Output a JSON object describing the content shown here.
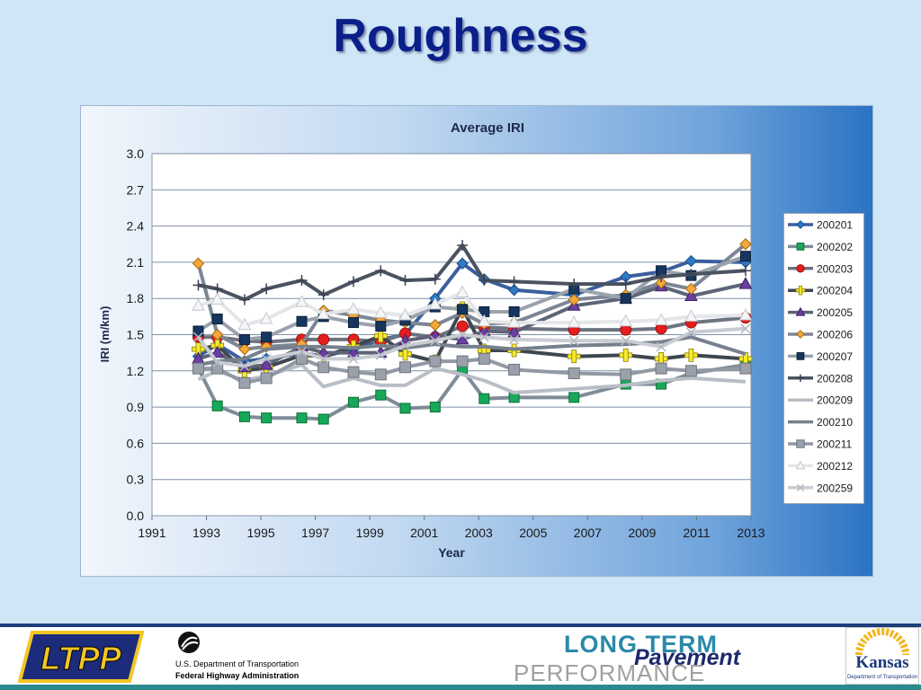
{
  "slide_title": "Roughness",
  "colors": {
    "title": "#0b1f8a",
    "plot_bg": "#ffffff",
    "grid": "#7f8fa6"
  },
  "chart_data": {
    "type": "line",
    "title": "Average IRI",
    "xlabel": "Year",
    "ylabel": "IRI (m/km)",
    "xlim": [
      1991,
      2013
    ],
    "ylim": [
      0,
      3.0
    ],
    "xticks": [
      "1991",
      "1993",
      "1995",
      "1997",
      "1999",
      "2001",
      "2003",
      "2005",
      "2007",
      "2009",
      "2011",
      "2013"
    ],
    "yticks": [
      "0.0",
      "0.3",
      "0.6",
      "0.9",
      "1.2",
      "1.5",
      "1.8",
      "2.1",
      "2.4",
      "2.7",
      "3.0"
    ],
    "grid": true,
    "legend_position": "right",
    "series": [
      {
        "name": "200201",
        "color": "#3a5f9e",
        "marker": "diamond",
        "x": [
          1992.7,
          1993.4,
          1994.4,
          1995.2,
          1996.5,
          1997.3,
          1998.4,
          1999.4,
          2000.3,
          2001.4,
          2002.4,
          2003.2,
          2004.3,
          2006.5,
          2008.4,
          2009.7,
          2010.8,
          2012.8
        ],
        "y": [
          1.32,
          1.42,
          1.28,
          1.3,
          1.35,
          1.32,
          1.38,
          1.46,
          1.5,
          1.8,
          2.09,
          1.96,
          1.87,
          1.83,
          1.98,
          2.02,
          2.11,
          2.1
        ]
      },
      {
        "name": "200202",
        "color": "#7f8c98",
        "marker": "square-green",
        "x": [
          1992.7,
          1993.4,
          1994.4,
          1995.2,
          1996.5,
          1997.3,
          1998.4,
          1999.4,
          2000.3,
          2001.4,
          2002.4,
          2003.2,
          2004.3,
          2006.5,
          2008.4,
          2009.7,
          2010.8,
          2012.8
        ],
        "y": [
          1.22,
          0.91,
          0.82,
          0.81,
          0.81,
          0.8,
          0.94,
          1.0,
          0.89,
          0.9,
          1.21,
          0.97,
          0.98,
          0.98,
          1.09,
          1.09,
          1.18,
          1.25
        ]
      },
      {
        "name": "200203",
        "color": "#6b7480",
        "marker": "circle-red",
        "x": [
          1992.7,
          1993.4,
          1994.4,
          1995.2,
          1996.5,
          1997.3,
          1998.4,
          1999.4,
          2000.3,
          2001.4,
          2002.4,
          2003.2,
          2004.3,
          2006.5,
          2008.4,
          2009.7,
          2010.8,
          2012.8
        ],
        "y": [
          1.48,
          1.48,
          1.45,
          1.44,
          1.46,
          1.46,
          1.46,
          1.44,
          1.51,
          1.48,
          1.57,
          1.56,
          1.55,
          1.54,
          1.54,
          1.55,
          1.6,
          1.64
        ]
      },
      {
        "name": "200204",
        "color": "#3f4650",
        "marker": "plus-yellow",
        "x": [
          1992.7,
          1993.4,
          1994.4,
          1995.2,
          1996.5,
          1997.3,
          1998.4,
          1999.4,
          2000.3,
          2001.4,
          2002.4,
          2003.2,
          2004.3,
          2006.5,
          2008.4,
          2009.7,
          2010.8,
          2012.8
        ],
        "y": [
          1.38,
          1.41,
          1.2,
          1.23,
          1.33,
          1.32,
          1.4,
          1.49,
          1.34,
          1.28,
          1.72,
          1.37,
          1.37,
          1.32,
          1.33,
          1.3,
          1.33,
          1.3
        ]
      },
      {
        "name": "200205",
        "color": "#5e6478",
        "marker": "triangle-purple",
        "x": [
          1992.7,
          1993.4,
          1994.4,
          1995.2,
          1996.5,
          1997.3,
          1998.4,
          1999.4,
          2000.3,
          2001.4,
          2002.4,
          2003.2,
          2004.3,
          2006.5,
          2008.4,
          2009.7,
          2010.8,
          2012.8
        ],
        "y": [
          1.3,
          1.35,
          1.23,
          1.25,
          1.4,
          1.35,
          1.35,
          1.35,
          1.45,
          1.49,
          1.46,
          1.53,
          1.52,
          1.74,
          1.8,
          1.9,
          1.82,
          1.92
        ]
      },
      {
        "name": "200206",
        "color": "#7d8694",
        "marker": "diamond-orange",
        "x": [
          1992.7,
          1993.4,
          1994.4,
          1995.2,
          1996.5,
          1997.3,
          1998.4,
          1999.4,
          2000.3,
          2001.4,
          2002.4,
          2003.2,
          2004.3,
          2006.5,
          2008.4,
          2009.7,
          2010.8,
          2012.8
        ],
        "y": [
          2.09,
          1.5,
          1.38,
          1.4,
          1.42,
          1.7,
          1.66,
          1.62,
          1.6,
          1.58,
          1.68,
          1.59,
          1.6,
          1.79,
          1.83,
          1.93,
          1.88,
          2.25
        ]
      },
      {
        "name": "200207",
        "color": "#9aa2ad",
        "marker": "square-navy",
        "x": [
          1992.7,
          1993.4,
          1994.4,
          1995.2,
          1996.5,
          1997.3,
          1998.4,
          1999.4,
          2000.3,
          2001.4,
          2002.4,
          2003.2,
          2004.3,
          2006.5,
          2008.4,
          2009.7,
          2010.8,
          2012.8
        ],
        "y": [
          1.53,
          1.63,
          1.46,
          1.48,
          1.61,
          1.65,
          1.6,
          1.57,
          1.62,
          1.73,
          1.71,
          1.69,
          1.69,
          1.88,
          1.8,
          2.03,
          1.99,
          2.15
        ]
      },
      {
        "name": "200208",
        "color": "#4b5260",
        "marker": "plus",
        "x": [
          1992.7,
          1993.4,
          1994.4,
          1995.2,
          1996.5,
          1997.3,
          1998.4,
          1999.4,
          2000.3,
          2001.4,
          2002.4,
          2003.2,
          2004.3,
          2006.5,
          2008.4,
          2009.7,
          2010.8,
          2012.8
        ],
        "y": [
          1.91,
          1.88,
          1.79,
          1.88,
          1.95,
          1.83,
          1.94,
          2.03,
          1.95,
          1.96,
          2.24,
          1.95,
          1.94,
          1.92,
          1.92,
          1.98,
          2.0,
          2.03
        ]
      },
      {
        "name": "200209",
        "color": "#b9bec6",
        "marker": "none",
        "x": [
          1992.7,
          1993.4,
          1994.4,
          1995.2,
          1996.5,
          1997.3,
          1998.4,
          1999.4,
          2000.3,
          2001.4,
          2002.4,
          2003.2,
          2004.3,
          2006.5,
          2008.4,
          2009.7,
          2010.8,
          2012.8
        ],
        "y": [
          1.13,
          1.2,
          1.12,
          1.16,
          1.25,
          1.07,
          1.14,
          1.08,
          1.08,
          1.22,
          1.17,
          1.12,
          1.02,
          1.05,
          1.08,
          1.12,
          1.14,
          1.11
        ]
      },
      {
        "name": "200210",
        "color": "#77808d",
        "marker": "none",
        "x": [
          1992.7,
          1993.4,
          1994.4,
          1995.2,
          1996.5,
          1997.3,
          1998.4,
          1999.4,
          2000.3,
          2001.4,
          2002.4,
          2003.2,
          2004.3,
          2006.5,
          2008.4,
          2009.7,
          2010.8,
          2012.8
        ],
        "y": [
          1.25,
          1.28,
          1.3,
          1.38,
          1.4,
          1.4,
          1.39,
          1.41,
          1.39,
          1.42,
          1.4,
          1.4,
          1.38,
          1.41,
          1.42,
          1.44,
          1.48,
          1.34
        ]
      },
      {
        "name": "200211",
        "color": "#9299a4",
        "marker": "square-gray",
        "x": [
          1992.7,
          1993.4,
          1994.4,
          1995.2,
          1996.5,
          1997.3,
          1998.4,
          1999.4,
          2000.3,
          2001.4,
          2002.4,
          2003.2,
          2004.3,
          2006.5,
          2008.4,
          2009.7,
          2010.8,
          2012.8
        ],
        "y": [
          1.22,
          1.22,
          1.1,
          1.14,
          1.3,
          1.23,
          1.19,
          1.17,
          1.23,
          1.28,
          1.28,
          1.3,
          1.21,
          1.18,
          1.17,
          1.22,
          1.2,
          1.22
        ]
      },
      {
        "name": "200212",
        "color": "#e4e6ea",
        "marker": "triangle-white",
        "x": [
          1992.7,
          1993.4,
          1994.4,
          1995.2,
          1996.5,
          1997.3,
          1998.4,
          1999.4,
          2000.3,
          2001.4,
          2002.4,
          2003.2,
          2004.3,
          2006.5,
          2008.4,
          2009.7,
          2010.8,
          2012.8
        ],
        "y": [
          1.74,
          1.79,
          1.58,
          1.63,
          1.77,
          1.67,
          1.71,
          1.68,
          1.66,
          1.75,
          1.85,
          1.61,
          1.6,
          1.6,
          1.61,
          1.62,
          1.65,
          1.66
        ]
      },
      {
        "name": "200259",
        "color": "#c9ccd2",
        "marker": "x",
        "x": [
          1992.7,
          1993.4,
          1994.4,
          1995.2,
          1996.5,
          1997.3,
          1998.4,
          1999.4,
          2000.3,
          2001.4,
          2002.4,
          2003.2,
          2004.3,
          2006.5,
          2008.4,
          2009.7,
          2010.8,
          2012.8
        ],
        "y": [
          1.48,
          1.27,
          1.24,
          1.3,
          1.36,
          1.3,
          1.3,
          1.33,
          1.41,
          1.45,
          1.5,
          1.48,
          1.46,
          1.45,
          1.45,
          1.4,
          1.52,
          1.55
        ]
      }
    ]
  },
  "footer": {
    "ltpp_text": "LTPP",
    "dot_line1": "U.S. Department of Transportation",
    "dot_line2": "Federal Highway Administration",
    "ltp_long": "LONG TERM",
    "ltp_pavement": "Pavement",
    "ltp_performance": "PERFORMANCE",
    "kansas_name": "Kansas",
    "kansas_sub": "Department of Transportation"
  }
}
